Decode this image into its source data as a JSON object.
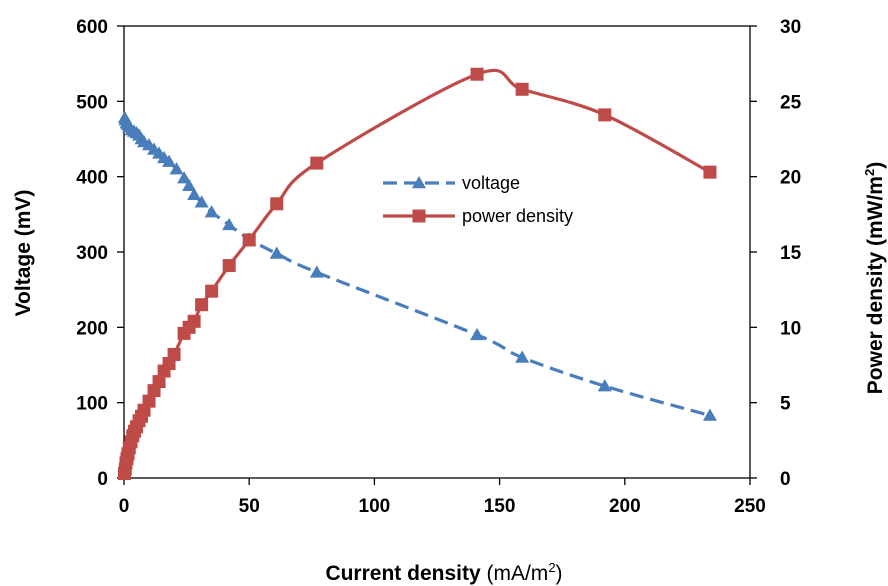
{
  "chart_data": {
    "type": "line",
    "title": "",
    "xlabel": {
      "main": "Current density",
      "unit_prefix": "(mA/m",
      "unit_exp": "2",
      "unit_suffix": ")"
    },
    "ylabel": "Voltage (mV)",
    "y2label": {
      "main": "Power density (mW/m",
      "exp": "2",
      "suffix": ")"
    },
    "xlim": [
      0,
      250
    ],
    "ylim": [
      0,
      600
    ],
    "y2lim": [
      0,
      30
    ],
    "x_ticks": [
      "0",
      "50",
      "100",
      "150",
      "200",
      "250"
    ],
    "y_ticks": [
      "0",
      "100",
      "200",
      "300",
      "400",
      "500",
      "600"
    ],
    "y2_ticks": [
      "0",
      "5",
      "10",
      "15",
      "20",
      "25",
      "30"
    ],
    "grid": false,
    "legend_position": "center",
    "series": [
      {
        "name": "voltage",
        "axis": "left",
        "color": "#4a7ebb",
        "marker": "triangle",
        "line_style": "dashed",
        "points": [
          [
            0.3,
            478
          ],
          [
            0.6,
            475
          ],
          [
            1,
            471
          ],
          [
            1.5,
            469
          ],
          [
            2,
            466
          ],
          [
            3,
            462
          ],
          [
            4,
            460
          ],
          [
            5,
            458
          ],
          [
            6,
            455
          ],
          [
            7,
            450
          ],
          [
            8,
            446
          ],
          [
            10,
            442
          ],
          [
            12,
            436
          ],
          [
            14,
            431
          ],
          [
            16,
            425
          ],
          [
            18,
            420
          ],
          [
            21,
            410
          ],
          [
            24,
            398
          ],
          [
            26,
            388
          ],
          [
            28,
            376
          ],
          [
            31,
            366
          ],
          [
            35,
            353
          ],
          [
            42,
            336
          ],
          [
            50,
            317
          ],
          [
            61,
            298
          ],
          [
            77,
            273
          ],
          [
            141,
            190
          ],
          [
            159,
            160
          ],
          [
            192,
            122
          ],
          [
            234,
            83
          ]
        ]
      },
      {
        "name": "power density",
        "axis": "right",
        "color": "#be4b48",
        "marker": "square",
        "line_style": "solid",
        "points": [
          [
            0.2,
            0.3
          ],
          [
            0.5,
            0.6
          ],
          [
            0.8,
            1.0
          ],
          [
            1.2,
            1.3
          ],
          [
            1.6,
            1.6
          ],
          [
            2.1,
            2.0
          ],
          [
            2.8,
            2.4
          ],
          [
            3.5,
            2.8
          ],
          [
            4.2,
            3.1
          ],
          [
            5,
            3.4
          ],
          [
            6,
            3.8
          ],
          [
            7,
            4.1
          ],
          [
            8,
            4.5
          ],
          [
            10,
            5.1
          ],
          [
            12,
            5.8
          ],
          [
            14,
            6.4
          ],
          [
            16,
            7.1
          ],
          [
            18,
            7.6
          ],
          [
            20,
            8.2
          ],
          [
            24,
            9.6
          ],
          [
            26,
            10.0
          ],
          [
            28,
            10.4
          ],
          [
            31,
            11.5
          ],
          [
            35,
            12.4
          ],
          [
            42,
            14.1
          ],
          [
            50,
            15.8
          ],
          [
            61,
            18.2
          ],
          [
            77,
            20.9
          ],
          [
            141,
            26.8
          ],
          [
            159,
            25.8
          ],
          [
            192,
            24.1
          ],
          [
            234,
            20.3
          ]
        ]
      }
    ]
  }
}
